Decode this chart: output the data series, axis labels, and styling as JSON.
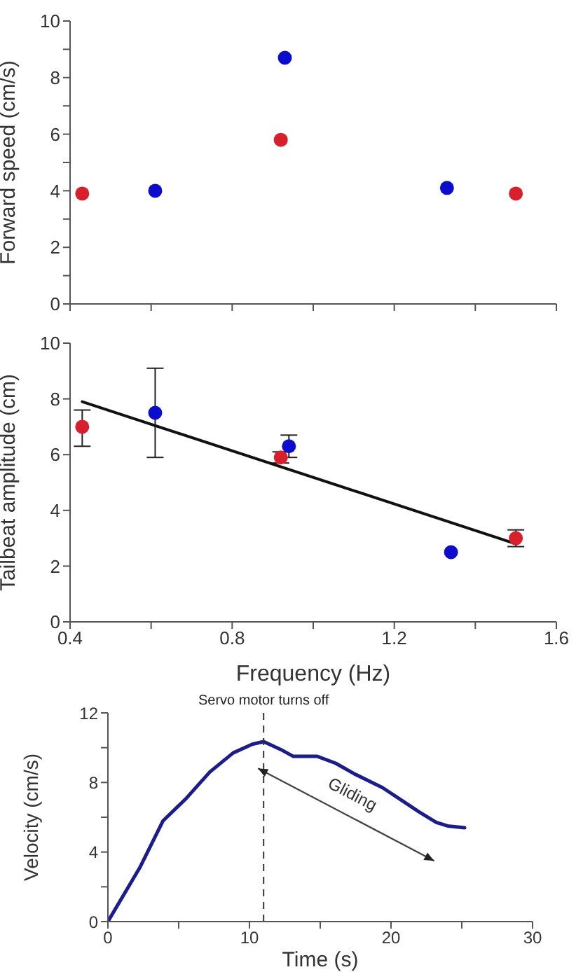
{
  "chart_data": [
    {
      "type": "scatter",
      "ylabel": "Forward speed (cm/s)",
      "xlim": [
        0.4,
        1.6
      ],
      "xticks": [
        {
          "value": 0.4,
          "label": null
        },
        {
          "value": 0.6,
          "label": null
        },
        {
          "value": 0.8,
          "label": null
        },
        {
          "value": 1.0,
          "label": null
        },
        {
          "value": 1.2,
          "label": null
        },
        {
          "value": 1.4,
          "label": null
        },
        {
          "value": 1.6,
          "label": null
        }
      ],
      "ylim": [
        0,
        10
      ],
      "yticks": [
        0,
        {
          "value": 1,
          "label": null
        },
        2,
        {
          "value": 3,
          "label": null
        },
        4,
        {
          "value": 5,
          "label": null
        },
        6,
        {
          "value": 7,
          "label": null
        },
        8,
        {
          "value": 9,
          "label": null
        },
        10
      ],
      "tick_labels": "y",
      "marker": "circle",
      "series": [
        {
          "color": "#d8202c",
          "x": [
            0.43,
            0.92,
            1.5
          ],
          "values": [
            3.9,
            5.8,
            3.9
          ]
        },
        {
          "color": "#0c0ccc",
          "x": [
            0.61,
            0.93,
            1.33
          ],
          "values": [
            4.0,
            8.7,
            4.1
          ]
        }
      ]
    },
    {
      "type": "scatter",
      "xlabel": "Frequency (Hz)",
      "ylabel": "Tailbeat amplitude (cm)",
      "xlim": [
        0.4,
        1.6
      ],
      "xticks": [
        0.4,
        {
          "value": 0.6,
          "label": null
        },
        0.8,
        {
          "value": 1.0,
          "label": null
        },
        1.2,
        {
          "value": 1.4,
          "label": null
        },
        1.6
      ],
      "ylim": [
        0,
        10
      ],
      "yticks": [
        0,
        2,
        4,
        6,
        8,
        10
      ],
      "marker": "circle",
      "series": [
        {
          "color": "#d8202c",
          "x": [
            0.43,
            0.92,
            1.5
          ],
          "values": [
            7.0,
            5.9,
            3.0
          ],
          "errors": [
            [
              6.3,
              7.6
            ],
            [
              5.7,
              6.1
            ],
            [
              2.7,
              3.3
            ]
          ]
        },
        {
          "color": "#0c0ccc",
          "x": [
            0.61,
            0.94,
            1.34
          ],
          "values": [
            7.5,
            6.3,
            2.5
          ],
          "errors": [
            [
              5.9,
              9.1
            ],
            [
              5.9,
              6.7
            ],
            null
          ]
        },
        {
          "type": "line",
          "color": "#111111",
          "marker": "none",
          "x": [
            0.43,
            1.5
          ],
          "values": [
            7.9,
            2.8
          ]
        }
      ]
    },
    {
      "type": "line",
      "xlabel": "Time (s)",
      "ylabel": "Velocity (cm/s)",
      "xlim": [
        0,
        30
      ],
      "xticks": [
        0,
        {
          "value": 5,
          "label": null
        },
        10,
        {
          "value": 15,
          "label": null
        },
        20,
        {
          "value": 25,
          "label": null
        },
        30
      ],
      "ylim": [
        0,
        12
      ],
      "yticks": [
        0,
        {
          "value": 2,
          "label": null
        },
        4,
        {
          "value": 6,
          "label": null
        },
        8,
        {
          "value": 10,
          "label": null
        },
        12
      ],
      "marker": "none",
      "line_style": "solid",
      "ref_lines": [
        {
          "axis": "x",
          "value": 11,
          "label": "Servo motor turns off",
          "line_style": "dashed",
          "color": "#333333"
        }
      ],
      "annotations": [
        "Gliding"
      ],
      "series": [
        {
          "color": "#1c1c8a",
          "x": [
            0,
            2.25,
            3.9,
            5.55,
            7.2,
            8.85,
            10.2,
            11,
            12.2,
            13.1,
            14.8,
            16.1,
            17.4,
            19.4,
            20.7,
            22,
            23.2,
            24,
            25.2
          ],
          "values": [
            0,
            3.1,
            5.8,
            7.1,
            8.6,
            9.7,
            10.2,
            10.35,
            9.9,
            9.5,
            9.5,
            9.1,
            8.5,
            7.7,
            7.0,
            6.3,
            5.7,
            5.5,
            5.4
          ]
        }
      ]
    }
  ]
}
